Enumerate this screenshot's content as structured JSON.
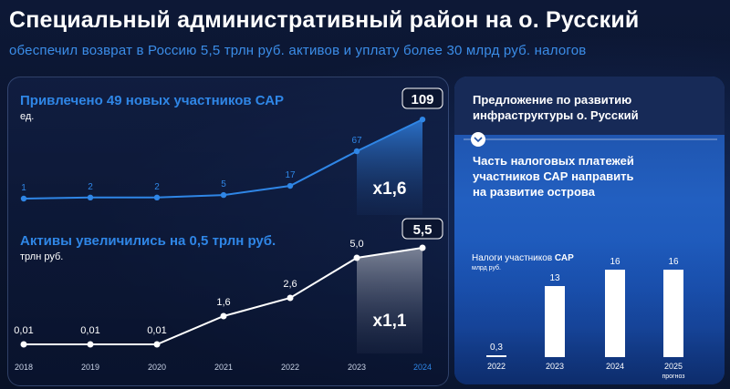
{
  "header": {
    "title": "Специальный административный район на о. Русский",
    "subtitle": "обеспечил возврат в Россию 5,5 трлн руб. активов и уплату более 30 млрд руб. налогов"
  },
  "colors": {
    "accent_blue": "#2f86e6",
    "panel_bg": "#0d1836",
    "white": "#ffffff"
  },
  "chart_data": [
    {
      "type": "line",
      "title": "Привлечено 49 новых участников САР",
      "ylabel": "ед.",
      "categories": [
        "2018",
        "2019",
        "2020",
        "2021",
        "2022",
        "2023",
        "2024"
      ],
      "labels": [
        "1",
        "2",
        "2",
        "5",
        "17",
        "67",
        "109"
      ],
      "values": [
        1,
        2,
        2,
        5,
        17,
        67,
        109
      ],
      "ylim": [
        0,
        109
      ],
      "highlight_label": "x1,6"
    },
    {
      "type": "line",
      "title": "Активы увеличились на 0,5 трлн руб.",
      "ylabel": "трлн руб.",
      "categories": [
        "2018",
        "2019",
        "2020",
        "2021",
        "2022",
        "2023",
        "2024"
      ],
      "labels": [
        "0,01",
        "0,01",
        "0,01",
        "1,6",
        "2,6",
        "5,0",
        "5,5"
      ],
      "values": [
        0.01,
        0.01,
        0.01,
        1.6,
        2.6,
        5.0,
        5.5
      ],
      "ylim": [
        0,
        5.5
      ],
      "highlight_label": "x1,1"
    },
    {
      "type": "bar",
      "title": "Налоги участников САР",
      "ylabel": "млрд руб.",
      "categories": [
        "2022",
        "2023",
        "2024",
        "2025"
      ],
      "category_notes": [
        "",
        "",
        "",
        "прогноз"
      ],
      "labels": [
        "0,3",
        "13",
        "16",
        "16"
      ],
      "values": [
        0.3,
        13,
        16,
        16
      ]
    }
  ],
  "x_axis_years": [
    "2018",
    "2019",
    "2020",
    "2021",
    "2022",
    "2023",
    "2024"
  ],
  "side": {
    "proposal_title": "Предложение по развитию инфраструктуры о. Русский",
    "proposal_line1": "Предложение по развитию",
    "proposal_line2": "инфраструктуры о. Русский",
    "chevron_icon": "chevron-down-icon",
    "text_line1": "Часть налоговых платежей",
    "text_line2": "участников САР направить",
    "text_line3": "на развитие острова",
    "tax_title_regular": "Налоги участников ",
    "tax_title_bold": "САР"
  }
}
